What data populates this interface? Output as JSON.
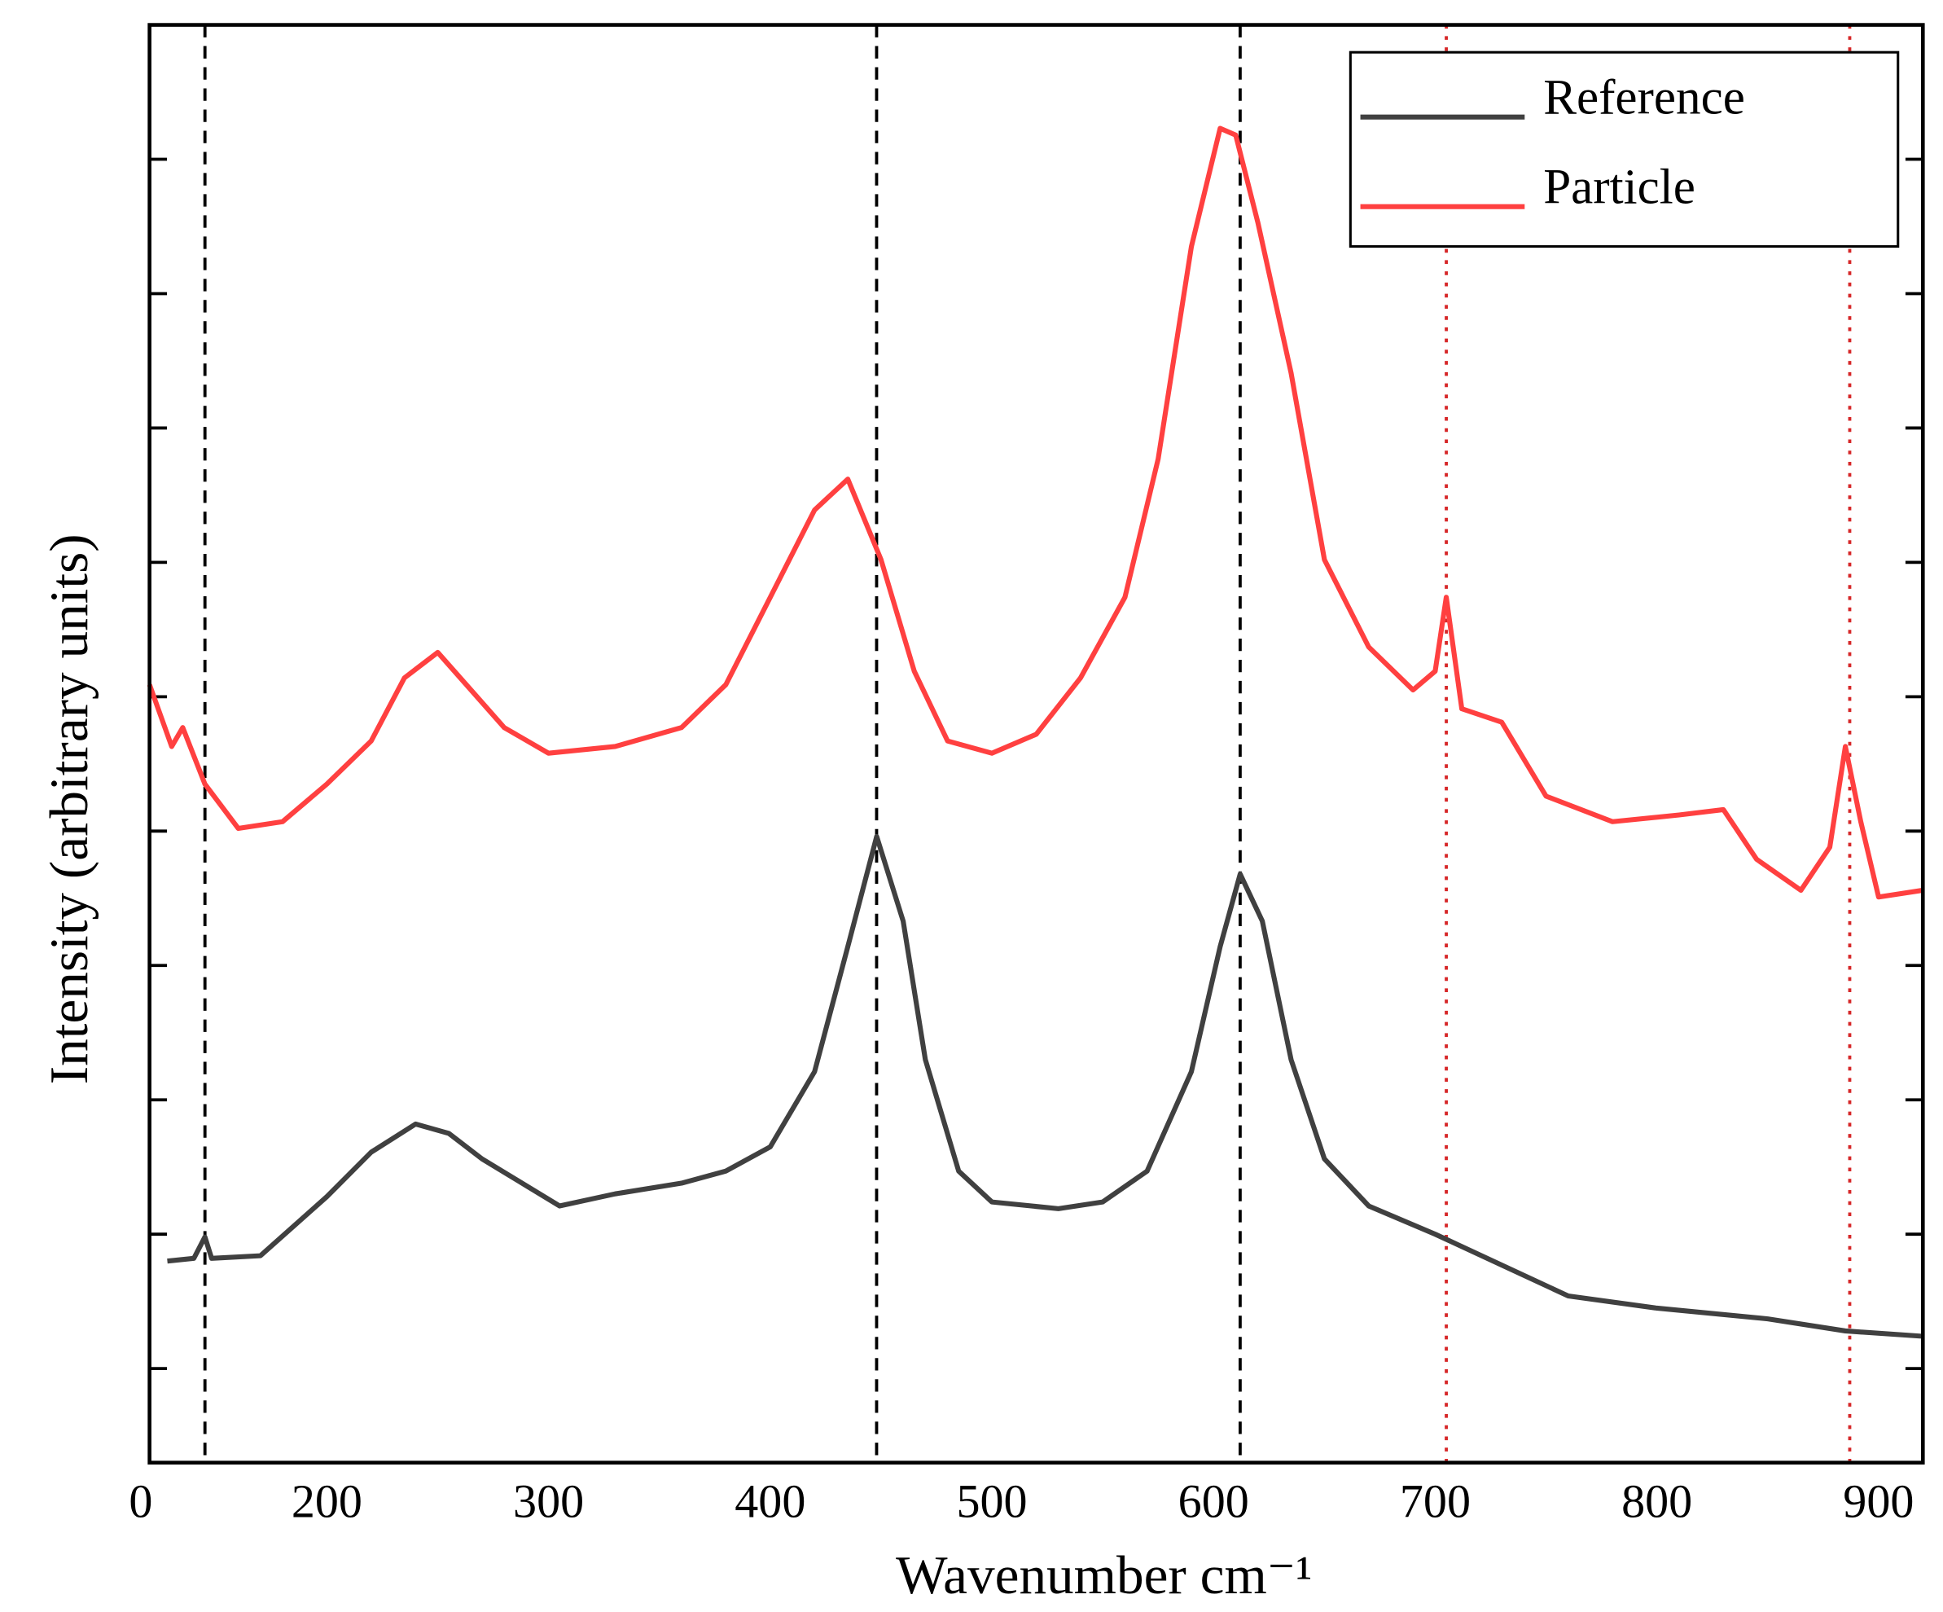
{
  "chart_data": {
    "type": "line",
    "xlabel": "Wavenumber cm⁻¹",
    "ylabel": "Intensity (arbitrary units)",
    "x_origin_label": "0",
    "xlim": [
      120,
      920
    ],
    "xticks": [
      200,
      300,
      400,
      500,
      600,
      700,
      800,
      900
    ],
    "ylim": [
      -0.7,
      10
    ],
    "yticks": [
      0,
      1,
      2,
      3,
      4,
      5,
      6,
      7,
      8,
      9
    ],
    "legend": "upper right",
    "reference_lines": [
      {
        "x": 145,
        "color": "#000000",
        "style": "dashed"
      },
      {
        "x": 448,
        "color": "#000000",
        "style": "dashed"
      },
      {
        "x": 612,
        "color": "#000000",
        "style": "dashed"
      },
      {
        "x": 705,
        "color": "#d62728",
        "style": "dotted"
      },
      {
        "x": 887,
        "color": "#d62728",
        "style": "dotted"
      }
    ],
    "series": [
      {
        "name": "Reference",
        "color": "#404040",
        "x": [
          128,
          140,
          145,
          148,
          170,
          200,
          220,
          240,
          255,
          270,
          290,
          305,
          330,
          360,
          380,
          400,
          420,
          435,
          448,
          460,
          470,
          485,
          500,
          530,
          550,
          570,
          590,
          603,
          612,
          622,
          635,
          650,
          670,
          700,
          730,
          760,
          800,
          850,
          885,
          920
        ],
        "values": [
          0.8,
          0.82,
          0.98,
          0.82,
          0.84,
          1.28,
          1.61,
          1.82,
          1.75,
          1.56,
          1.36,
          1.21,
          1.3,
          1.38,
          1.47,
          1.65,
          2.21,
          3.14,
          3.96,
          3.33,
          2.3,
          1.47,
          1.24,
          1.19,
          1.24,
          1.47,
          2.21,
          3.14,
          3.68,
          3.33,
          2.3,
          1.56,
          1.21,
          1.0,
          0.77,
          0.54,
          0.45,
          0.37,
          0.28,
          0.24
        ]
      },
      {
        "name": "Particle",
        "color": "#ff4040",
        "x": [
          120,
          130,
          135,
          145,
          160,
          180,
          200,
          220,
          235,
          250,
          265,
          280,
          300,
          330,
          360,
          380,
          400,
          420,
          435,
          450,
          465,
          480,
          500,
          520,
          540,
          560,
          575,
          590,
          603,
          610,
          620,
          635,
          650,
          670,
          690,
          700,
          705,
          712,
          730,
          750,
          780,
          810,
          830,
          845,
          865,
          878,
          885,
          892,
          900,
          920
        ],
        "values": [
          5.09,
          4.63,
          4.77,
          4.35,
          4.02,
          4.07,
          4.35,
          4.67,
          5.14,
          5.33,
          5.05,
          4.77,
          4.58,
          4.63,
          4.77,
          5.09,
          5.74,
          6.39,
          6.62,
          6.02,
          5.19,
          4.67,
          4.58,
          4.72,
          5.14,
          5.74,
          6.77,
          8.35,
          9.23,
          9.18,
          8.53,
          7.41,
          6.02,
          5.37,
          5.05,
          5.19,
          5.74,
          4.91,
          4.81,
          4.26,
          4.07,
          4.12,
          4.16,
          3.79,
          3.56,
          3.88,
          4.63,
          4.07,
          3.51,
          3.56
        ]
      }
    ]
  }
}
